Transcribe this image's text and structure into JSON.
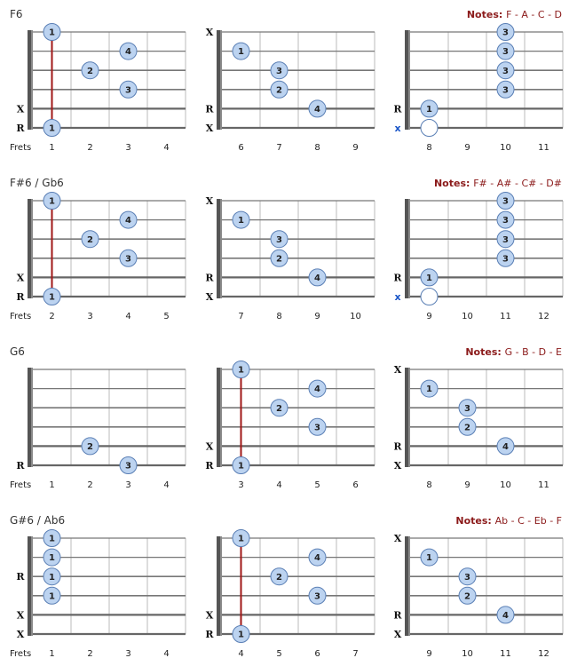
{
  "frets_label": "Frets",
  "colors": {
    "dot_fill": "#bcd3f0",
    "dot_stroke": "#5a7fb5",
    "string_line": "#777777",
    "fret_line": "#bbbbbb",
    "nut": "#555555",
    "barre": "#a01818",
    "notes_text": "#8b1a1a",
    "x_blue": "#1a56c8"
  },
  "rows": [
    {
      "title": "F6",
      "notes_label": "Notes:",
      "notes": "F - A - C - D",
      "diagrams": [
        {
          "frets": [
            "1",
            "2",
            "3",
            "4"
          ],
          "markers": [
            {
              "s": 1,
              "t": "R"
            },
            {
              "s": 2,
              "t": "X"
            }
          ],
          "dots": [
            {
              "s": 6,
              "f": 1,
              "n": "1"
            },
            {
              "s": 5,
              "f": 3,
              "n": "4"
            },
            {
              "s": 4,
              "f": 2,
              "n": "2"
            },
            {
              "s": 3,
              "f": 3,
              "n": "3"
            },
            {
              "s": 1,
              "f": 1,
              "n": "1"
            }
          ],
          "barre": {
            "f": 1,
            "from": 6,
            "to": 1
          }
        },
        {
          "frets": [
            "6",
            "7",
            "8",
            "9"
          ],
          "markers": [
            {
              "s": 6,
              "t": "X"
            },
            {
              "s": 2,
              "t": "R"
            },
            {
              "s": 1,
              "t": "X"
            }
          ],
          "dots": [
            {
              "s": 5,
              "f": 1,
              "n": "1"
            },
            {
              "s": 4,
              "f": 2,
              "n": "3"
            },
            {
              "s": 3,
              "f": 2,
              "n": "2"
            },
            {
              "s": 2,
              "f": 3,
              "n": "4"
            }
          ]
        },
        {
          "frets": [
            "8",
            "9",
            "10",
            "11"
          ],
          "markers": [
            {
              "s": 2,
              "t": "R"
            },
            {
              "s": 1,
              "t": "x",
              "blue": true
            }
          ],
          "dots": [
            {
              "s": 6,
              "f": 3,
              "n": "3"
            },
            {
              "s": 5,
              "f": 3,
              "n": "3"
            },
            {
              "s": 4,
              "f": 3,
              "n": "3"
            },
            {
              "s": 3,
              "f": 3,
              "n": "3"
            },
            {
              "s": 2,
              "f": 1,
              "n": "1"
            },
            {
              "s": 1,
              "f": 1,
              "n": "",
              "open": true
            }
          ]
        }
      ]
    },
    {
      "title": "F#6 / Gb6",
      "notes_label": "Notes:",
      "notes": "F# - A# - C# - D#",
      "diagrams": [
        {
          "frets": [
            "2",
            "3",
            "4",
            "5"
          ],
          "markers": [
            {
              "s": 1,
              "t": "R"
            },
            {
              "s": 2,
              "t": "X"
            }
          ],
          "dots": [
            {
              "s": 6,
              "f": 1,
              "n": "1"
            },
            {
              "s": 5,
              "f": 3,
              "n": "4"
            },
            {
              "s": 4,
              "f": 2,
              "n": "2"
            },
            {
              "s": 3,
              "f": 3,
              "n": "3"
            },
            {
              "s": 1,
              "f": 1,
              "n": "1"
            }
          ],
          "barre": {
            "f": 1,
            "from": 6,
            "to": 1
          }
        },
        {
          "frets": [
            "7",
            "8",
            "9",
            "10"
          ],
          "markers": [
            {
              "s": 6,
              "t": "X"
            },
            {
              "s": 2,
              "t": "R"
            },
            {
              "s": 1,
              "t": "X"
            }
          ],
          "dots": [
            {
              "s": 5,
              "f": 1,
              "n": "1"
            },
            {
              "s": 4,
              "f": 2,
              "n": "3"
            },
            {
              "s": 3,
              "f": 2,
              "n": "2"
            },
            {
              "s": 2,
              "f": 3,
              "n": "4"
            }
          ]
        },
        {
          "frets": [
            "9",
            "10",
            "11",
            "12"
          ],
          "markers": [
            {
              "s": 2,
              "t": "R"
            },
            {
              "s": 1,
              "t": "x",
              "blue": true
            }
          ],
          "dots": [
            {
              "s": 6,
              "f": 3,
              "n": "3"
            },
            {
              "s": 5,
              "f": 3,
              "n": "3"
            },
            {
              "s": 4,
              "f": 3,
              "n": "3"
            },
            {
              "s": 3,
              "f": 3,
              "n": "3"
            },
            {
              "s": 2,
              "f": 1,
              "n": "1"
            },
            {
              "s": 1,
              "f": 1,
              "n": "",
              "open": true
            }
          ]
        }
      ]
    },
    {
      "title": "G6",
      "notes_label": "Notes:",
      "notes": "G - B - D - E",
      "diagrams": [
        {
          "frets": [
            "1",
            "2",
            "3",
            "4"
          ],
          "markers": [
            {
              "s": 1,
              "t": "R"
            }
          ],
          "dots": [
            {
              "s": 2,
              "f": 2,
              "n": "2"
            },
            {
              "s": 1,
              "f": 3,
              "n": "3"
            }
          ]
        },
        {
          "frets": [
            "3",
            "4",
            "5",
            "6"
          ],
          "markers": [
            {
              "s": 2,
              "t": "X"
            },
            {
              "s": 1,
              "t": "R"
            }
          ],
          "dots": [
            {
              "s": 6,
              "f": 1,
              "n": "1"
            },
            {
              "s": 5,
              "f": 3,
              "n": "4"
            },
            {
              "s": 4,
              "f": 2,
              "n": "2"
            },
            {
              "s": 3,
              "f": 3,
              "n": "3"
            },
            {
              "s": 1,
              "f": 1,
              "n": "1"
            }
          ],
          "barre": {
            "f": 1,
            "from": 6,
            "to": 1
          }
        },
        {
          "frets": [
            "8",
            "9",
            "10",
            "11"
          ],
          "markers": [
            {
              "s": 6,
              "t": "X"
            },
            {
              "s": 2,
              "t": "R"
            },
            {
              "s": 1,
              "t": "X"
            }
          ],
          "dots": [
            {
              "s": 5,
              "f": 1,
              "n": "1"
            },
            {
              "s": 4,
              "f": 2,
              "n": "3"
            },
            {
              "s": 3,
              "f": 2,
              "n": "2"
            },
            {
              "s": 2,
              "f": 3,
              "n": "4"
            }
          ]
        }
      ]
    },
    {
      "title": "G#6 / Ab6",
      "notes_label": "Notes:",
      "notes": "Ab - C - Eb - F",
      "diagrams": [
        {
          "frets": [
            "1",
            "2",
            "3",
            "4"
          ],
          "markers": [
            {
              "s": 4,
              "t": "R"
            },
            {
              "s": 2,
              "t": "X"
            },
            {
              "s": 1,
              "t": "X"
            }
          ],
          "dots": [
            {
              "s": 6,
              "f": 1,
              "n": "1"
            },
            {
              "s": 5,
              "f": 1,
              "n": "1"
            },
            {
              "s": 4,
              "f": 1,
              "n": "1"
            },
            {
              "s": 3,
              "f": 1,
              "n": "1"
            }
          ]
        },
        {
          "frets": [
            "4",
            "5",
            "6",
            "7"
          ],
          "markers": [
            {
              "s": 2,
              "t": "X"
            },
            {
              "s": 1,
              "t": "R"
            }
          ],
          "dots": [
            {
              "s": 6,
              "f": 1,
              "n": "1"
            },
            {
              "s": 5,
              "f": 3,
              "n": "4"
            },
            {
              "s": 4,
              "f": 2,
              "n": "2"
            },
            {
              "s": 3,
              "f": 3,
              "n": "3"
            },
            {
              "s": 1,
              "f": 1,
              "n": "1"
            }
          ],
          "barre": {
            "f": 1,
            "from": 6,
            "to": 1
          }
        },
        {
          "frets": [
            "9",
            "10",
            "11",
            "12"
          ],
          "markers": [
            {
              "s": 6,
              "t": "X"
            },
            {
              "s": 2,
              "t": "R"
            },
            {
              "s": 1,
              "t": "X"
            }
          ],
          "dots": [
            {
              "s": 5,
              "f": 1,
              "n": "1"
            },
            {
              "s": 4,
              "f": 2,
              "n": "3"
            },
            {
              "s": 3,
              "f": 2,
              "n": "2"
            },
            {
              "s": 2,
              "f": 3,
              "n": "4"
            }
          ]
        }
      ]
    }
  ]
}
